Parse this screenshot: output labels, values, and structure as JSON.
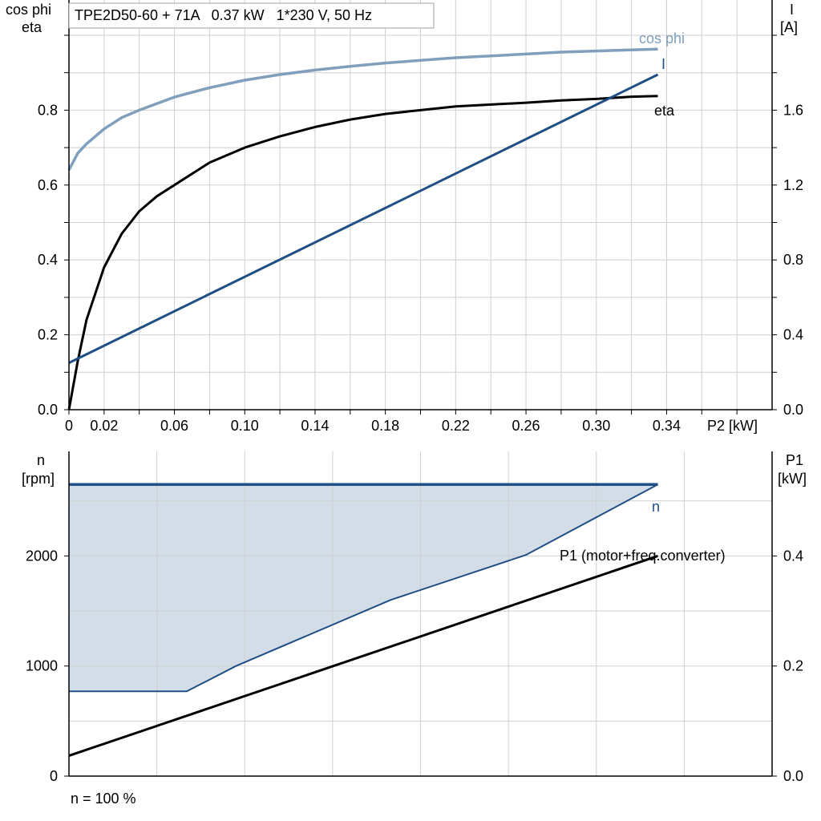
{
  "colors": {
    "grid": "#cfcfcf",
    "axis": "#000000",
    "cosphi": "#7f9fbd",
    "eta": "#000000",
    "current": "#1f4f85",
    "speed": "#1f4f85",
    "area_fill": "#d2dde8",
    "p1": "#000000"
  },
  "title_box": {
    "text": "TPE2D50-60 + 71A   0.37 kW   1*230 V, 50 Hz"
  },
  "top_chart": {
    "left_axis_label_1": "cos phi",
    "left_axis_label_2": "eta",
    "right_axis_label_1": "I",
    "right_axis_label_2": "[A]",
    "x_axis_label": "P2 [kW]",
    "x_ticks": [
      "0",
      "0.02",
      "0.06",
      "0.10",
      "0.14",
      "0.18",
      "0.22",
      "0.26",
      "0.30",
      "0.34"
    ],
    "left_ticks": [
      "0.0",
      "0.2",
      "0.4",
      "0.6",
      "0.8"
    ],
    "right_ticks": [
      "0.0",
      "0.4",
      "0.8",
      "1.2",
      "1.6"
    ],
    "curve_labels": {
      "cosphi": "cos phi",
      "current": "I",
      "eta": "eta"
    }
  },
  "bottom_chart": {
    "left_axis_label_1": "n",
    "left_axis_label_2": "[rpm]",
    "right_axis_label_1": "P1",
    "right_axis_label_2": "[kW]",
    "left_ticks": [
      "0",
      "1000",
      "2000"
    ],
    "right_ticks": [
      "0.0",
      "0.2",
      "0.4"
    ],
    "curve_labels": {
      "speed": "n",
      "p1": "P1 (motor+freq.converter)"
    },
    "footer": "n = 100 %"
  },
  "chart_data": [
    {
      "type": "line",
      "xlabel": "P2 [kW]",
      "ylabel": "cos phi / eta",
      "ylabel_right": "I [A]",
      "xlim": [
        0,
        0.4
      ],
      "ylim": [
        0,
        1.0
      ],
      "ylim_right": [
        0,
        2.0
      ],
      "grid": true,
      "series": [
        {
          "name": "cos phi",
          "axis": "left",
          "x": [
            0,
            0.005,
            0.01,
            0.02,
            0.03,
            0.04,
            0.06,
            0.08,
            0.1,
            0.12,
            0.14,
            0.16,
            0.18,
            0.2,
            0.22,
            0.24,
            0.26,
            0.28,
            0.3,
            0.32,
            0.335
          ],
          "y": [
            0.64,
            0.685,
            0.71,
            0.75,
            0.78,
            0.8,
            0.835,
            0.86,
            0.88,
            0.895,
            0.907,
            0.917,
            0.926,
            0.933,
            0.94,
            0.945,
            0.95,
            0.955,
            0.958,
            0.961,
            0.963
          ]
        },
        {
          "name": "eta",
          "axis": "left",
          "x": [
            0,
            0.005,
            0.01,
            0.02,
            0.03,
            0.04,
            0.05,
            0.06,
            0.08,
            0.1,
            0.12,
            0.14,
            0.16,
            0.18,
            0.2,
            0.22,
            0.24,
            0.26,
            0.28,
            0.3,
            0.32,
            0.335
          ],
          "y": [
            0,
            0.13,
            0.24,
            0.38,
            0.47,
            0.53,
            0.57,
            0.6,
            0.66,
            0.7,
            0.73,
            0.755,
            0.775,
            0.79,
            0.8,
            0.81,
            0.815,
            0.82,
            0.826,
            0.83,
            0.836,
            0.838
          ]
        },
        {
          "name": "I",
          "axis": "right",
          "x": [
            0,
            0.335
          ],
          "y": [
            0.25,
            1.79
          ]
        }
      ]
    },
    {
      "type": "area",
      "xlabel": "P2 [kW]",
      "ylabel": "n [rpm]",
      "ylabel_right": "P1 [kW]",
      "xlim": [
        0,
        0.4
      ],
      "ylim": [
        0,
        2950
      ],
      "ylim_right": [
        0,
        0.59
      ],
      "grid": true,
      "series": [
        {
          "name": "n",
          "axis": "left",
          "x": [
            0,
            0.335
          ],
          "y": [
            2650,
            2650
          ]
        },
        {
          "name": "n",
          "axis": "left",
          "x": [
            0,
            0.067,
            0.095,
            0.183,
            0.26,
            0.335
          ],
          "y": [
            770,
            770,
            1000,
            1600,
            2010,
            2650
          ]
        },
        {
          "name": "P1 (motor+freq.converter)",
          "axis": "right",
          "x": [
            0,
            0.335
          ],
          "y": [
            0.037,
            0.4
          ]
        }
      ]
    }
  ]
}
